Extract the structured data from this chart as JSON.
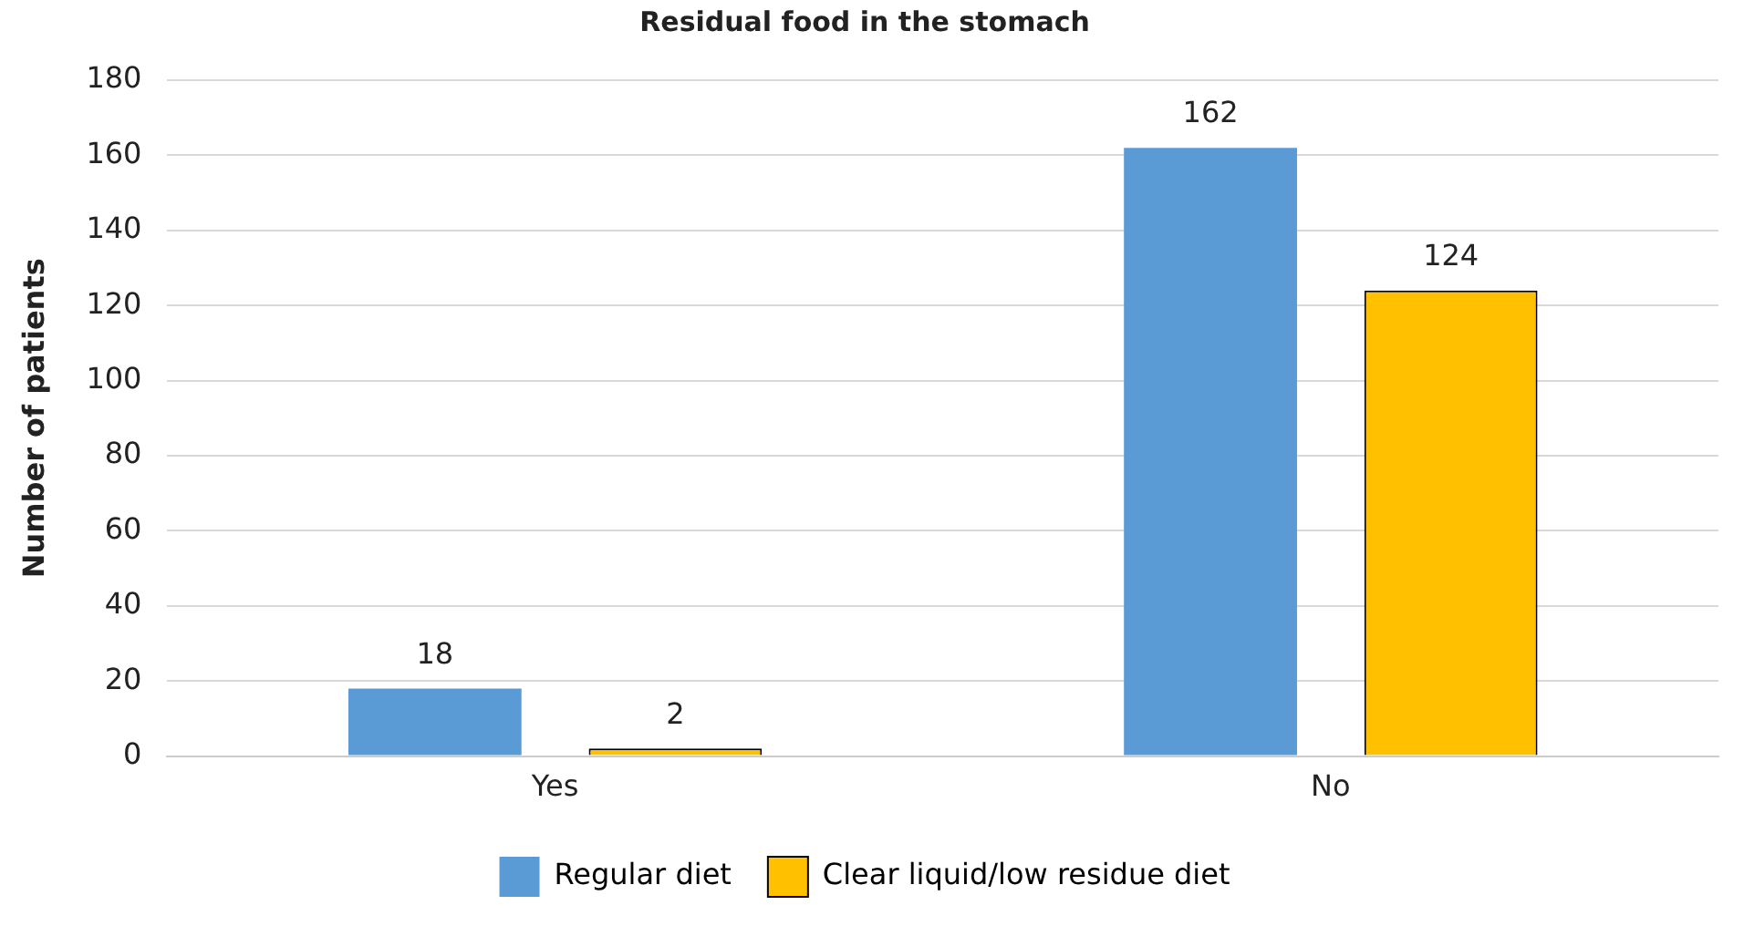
{
  "chart_data": {
    "type": "bar",
    "title": "Residual food in the stomach",
    "ylabel": "Number of patients",
    "categories": [
      "Yes",
      "No"
    ],
    "series": [
      {
        "name": "Regular diet",
        "color": "#5b9bd5",
        "values": [
          18,
          162
        ]
      },
      {
        "name": "Clear liquid/low residue diet",
        "color": "#ffc000",
        "values": [
          2,
          124
        ]
      }
    ],
    "ylim": [
      0,
      180
    ],
    "yticks": [
      0,
      20,
      40,
      60,
      80,
      100,
      120,
      140,
      160,
      180
    ],
    "grid": "y",
    "legend": "bottom",
    "data_labels": true
  }
}
